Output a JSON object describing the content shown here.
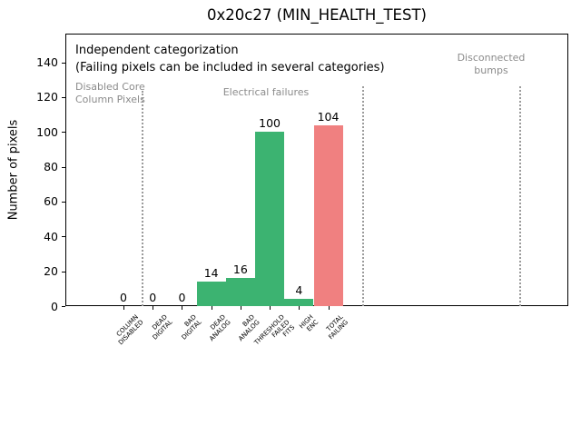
{
  "figure": {
    "background": "#ffffff"
  },
  "chart_data": {
    "type": "bar",
    "title": "0x20c27 (MIN_HEALTH_TEST)",
    "xlabel": "",
    "ylabel": "Number of pixels",
    "categories": [
      "COLUMN\nDISABLED",
      "DEAD\nDIGITAL",
      "BAD\nDIGITAL",
      "DEAD\nANALOG",
      "BAD\nANALOG",
      "THRESHOLD\nFAILED\nFITS",
      "HIGH\nENC",
      "TOTAL\nFAILING"
    ],
    "values": [
      0,
      0,
      0,
      14,
      16,
      100,
      4,
      104
    ],
    "bar_colors": [
      "#3cb371",
      "#3cb371",
      "#3cb371",
      "#3cb371",
      "#3cb371",
      "#3cb371",
      "#3cb371",
      "#f08080"
    ],
    "value_labels": [
      "0",
      "0",
      "0",
      "14",
      "16",
      "100",
      "4",
      "104"
    ],
    "yticks": [
      0,
      20,
      40,
      60,
      80,
      100,
      120,
      140
    ],
    "ylim": [
      0,
      156.5
    ],
    "grid": false,
    "legend": null,
    "annotations": {
      "note_line1": "Independent categorization",
      "note_line2": "(Failing pixels can be included in several categories)",
      "region_labels": [
        "Disabled Core\nColumn Pixels",
        "Electrical failures",
        "Disconnected\nbumps"
      ]
    },
    "separator_style": "dotted"
  },
  "colors": {
    "bar_green": "#3cb371",
    "bar_red": "#f08080",
    "annotation_gray": "#8b8b8b",
    "separator_gray": "#9b9b9b",
    "axis_black": "#000000"
  }
}
